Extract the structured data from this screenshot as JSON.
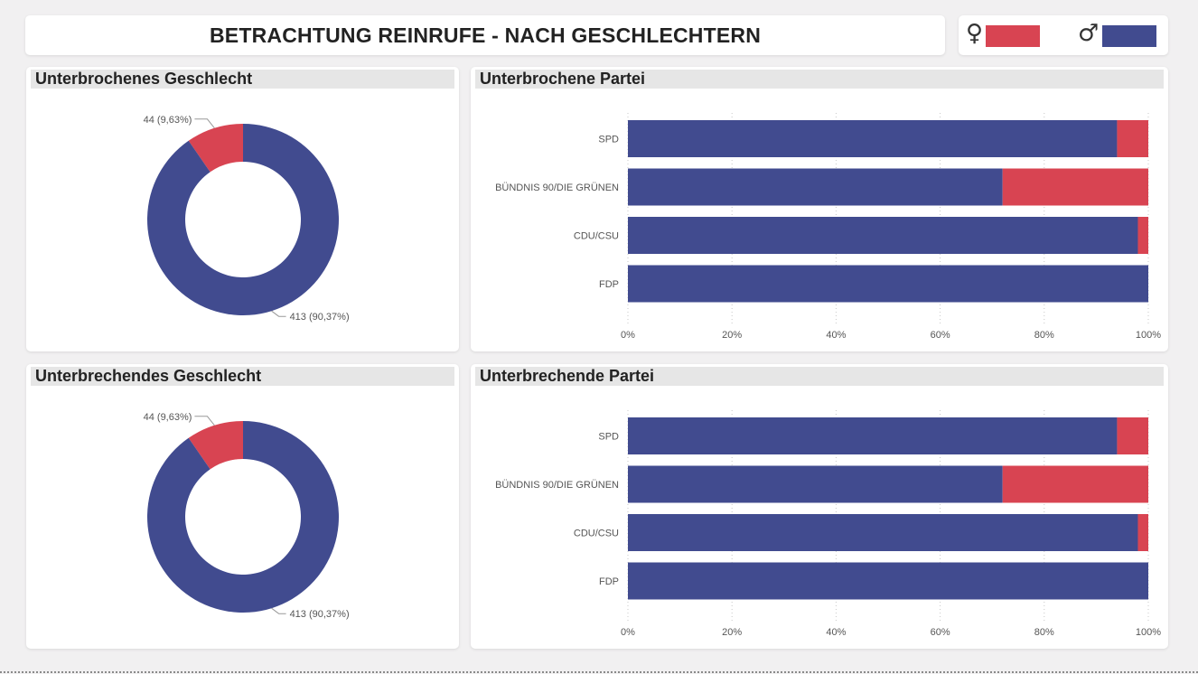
{
  "header": {
    "title": "BETRACHTUNG REINRUFE - NACH GESCHLECHTERN"
  },
  "legend": {
    "female_symbol": "♀",
    "male_symbol": "♂",
    "female_color": "#d84452",
    "male_color": "#414b8f"
  },
  "panels": {
    "donut_top_title": "Unterbrochenes Geschlecht",
    "bar_top_title": "Unterbrochene Partei",
    "donut_bottom_title": "Unterbrechendes Geschlecht",
    "bar_bottom_title": "Unterbrechende Partei"
  },
  "chart_data": [
    {
      "type": "pie",
      "variant": "donut",
      "title": "Unterbrochenes Geschlecht",
      "slices": [
        {
          "gender": "female",
          "value": 44,
          "percent": 9.63,
          "label": "44 (9,63%)",
          "color": "#d84452"
        },
        {
          "gender": "male",
          "value": 413,
          "percent": 90.37,
          "label": "413 (90,37%)",
          "color": "#414b8f"
        }
      ]
    },
    {
      "type": "bar",
      "orientation": "horizontal",
      "stacked": "percent",
      "title": "Unterbrochene Partei",
      "categories": [
        "SPD",
        "BÜNDNIS 90/DIE GRÜNEN",
        "CDU/CSU",
        "FDP"
      ],
      "series": [
        {
          "gender": "male",
          "color": "#414b8f",
          "values": [
            94,
            72,
            98,
            100
          ]
        },
        {
          "gender": "female",
          "color": "#d84452",
          "values": [
            6,
            28,
            2,
            0
          ]
        }
      ],
      "xlim": [
        0,
        100
      ],
      "x_ticks": [
        "0%",
        "20%",
        "40%",
        "60%",
        "80%",
        "100%"
      ],
      "grid": "vertical-dotted"
    },
    {
      "type": "pie",
      "variant": "donut",
      "title": "Unterbrechendes Geschlecht",
      "slices": [
        {
          "gender": "female",
          "value": 44,
          "percent": 9.63,
          "label": "44 (9,63%)",
          "color": "#d84452"
        },
        {
          "gender": "male",
          "value": 413,
          "percent": 90.37,
          "label": "413 (90,37%)",
          "color": "#414b8f"
        }
      ]
    },
    {
      "type": "bar",
      "orientation": "horizontal",
      "stacked": "percent",
      "title": "Unterbrechende Partei",
      "categories": [
        "SPD",
        "BÜNDNIS 90/DIE GRÜNEN",
        "CDU/CSU",
        "FDP"
      ],
      "series": [
        {
          "gender": "male",
          "color": "#414b8f",
          "values": [
            94,
            72,
            98,
            100
          ]
        },
        {
          "gender": "female",
          "color": "#d84452",
          "values": [
            6,
            28,
            2,
            0
          ]
        }
      ],
      "xlim": [
        0,
        100
      ],
      "x_ticks": [
        "0%",
        "20%",
        "40%",
        "60%",
        "80%",
        "100%"
      ],
      "grid": "vertical-dotted"
    }
  ]
}
